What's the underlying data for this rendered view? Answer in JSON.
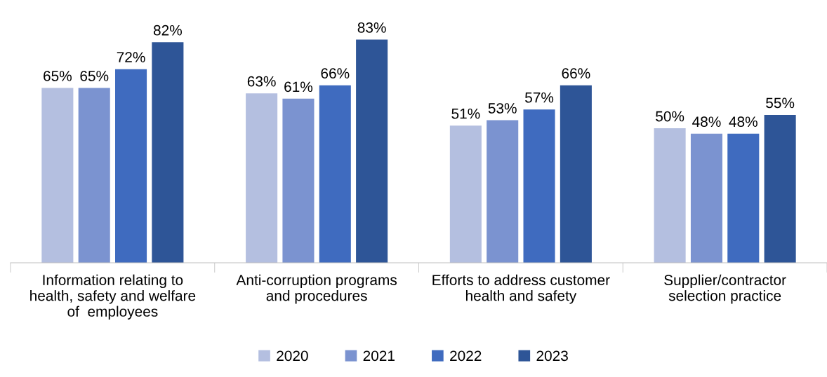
{
  "chart_data": {
    "type": "bar",
    "categories": [
      "Information relating to\nhealth, safety and welfare\nof  employees",
      "Anti-corruption programs\nand procedures",
      "Efforts to address customer\nhealth and safety",
      "Supplier/contractor\nselection practice"
    ],
    "series": [
      {
        "name": "2020",
        "color": "#b4bfe0",
        "values": [
          65,
          63,
          51,
          50
        ],
        "value_labels": [
          "65%",
          "63%",
          "51%",
          "50%"
        ]
      },
      {
        "name": "2021",
        "color": "#7b93d0",
        "values": [
          65,
          61,
          53,
          48
        ],
        "value_labels": [
          "65%",
          "61%",
          "53%",
          "48%"
        ]
      },
      {
        "name": "2022",
        "color": "#3f6bbf",
        "values": [
          72,
          66,
          57,
          48
        ],
        "value_labels": [
          "72%",
          "66%",
          "57%",
          "48%"
        ]
      },
      {
        "name": "2023",
        "color": "#2e5597",
        "values": [
          82,
          83,
          66,
          55
        ],
        "value_labels": [
          "82%",
          "83%",
          "66%",
          "55%"
        ]
      }
    ],
    "tick_labels": "x",
    "legend": "bottom"
  }
}
